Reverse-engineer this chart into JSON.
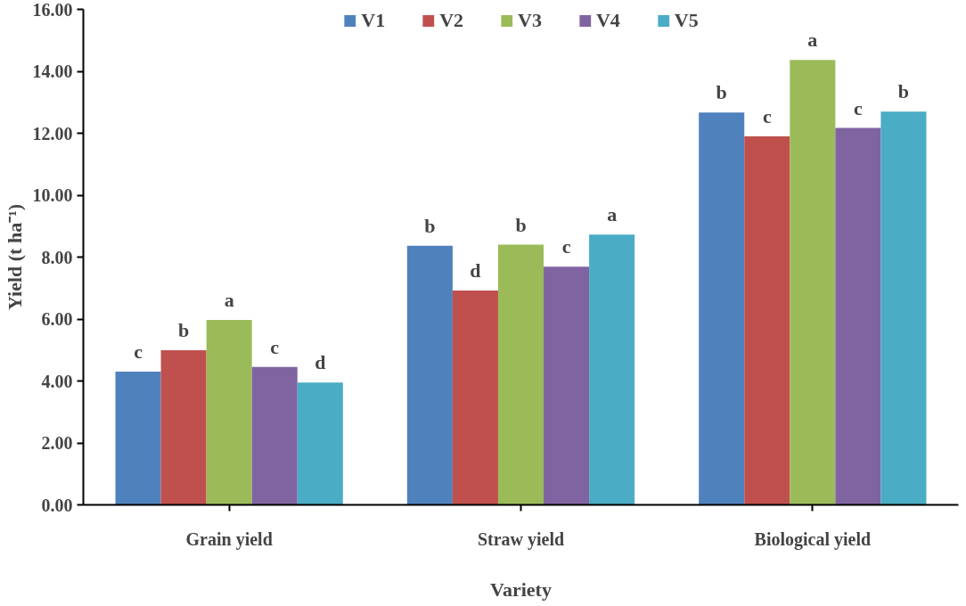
{
  "chart_data": {
    "type": "bar",
    "xlabel": "Variety",
    "ylabel": "Yield (t ha⁻¹)",
    "categories": [
      "Grain yield",
      "Straw yield",
      "Biological yield"
    ],
    "series": [
      {
        "name": "V1",
        "color": "#4f81bd",
        "values": [
          4.3,
          8.37,
          12.67
        ],
        "value_labels": [
          "c",
          "b",
          "b"
        ]
      },
      {
        "name": "V2",
        "color": "#c0504d",
        "values": [
          4.99,
          6.92,
          11.9
        ],
        "value_labels": [
          "b",
          "d",
          "c"
        ]
      },
      {
        "name": "V3",
        "color": "#9bbb59",
        "values": [
          5.97,
          8.4,
          14.37
        ],
        "value_labels": [
          "a",
          "b",
          "a"
        ]
      },
      {
        "name": "V4",
        "color": "#8064a2",
        "values": [
          4.45,
          7.69,
          12.17
        ],
        "value_labels": [
          "c",
          "c",
          "c"
        ]
      },
      {
        "name": "V5",
        "color": "#4bacc6",
        "values": [
          3.95,
          8.73,
          12.7
        ],
        "value_labels": [
          "d",
          "a",
          "b"
        ]
      }
    ],
    "ylim": [
      0,
      16
    ],
    "yticks": [
      {
        "value": 0,
        "label": "0.00"
      },
      {
        "value": 2,
        "label": "2.00"
      },
      {
        "value": 4,
        "label": "4.00"
      },
      {
        "value": 6,
        "label": "6.00"
      },
      {
        "value": 8,
        "label": "8.00"
      },
      {
        "value": 10,
        "label": "10.00"
      },
      {
        "value": 12,
        "label": "12.00"
      },
      {
        "value": 14,
        "label": "14.00"
      },
      {
        "value": 16,
        "label": "16.00"
      }
    ],
    "grid": false,
    "legend": "top"
  }
}
